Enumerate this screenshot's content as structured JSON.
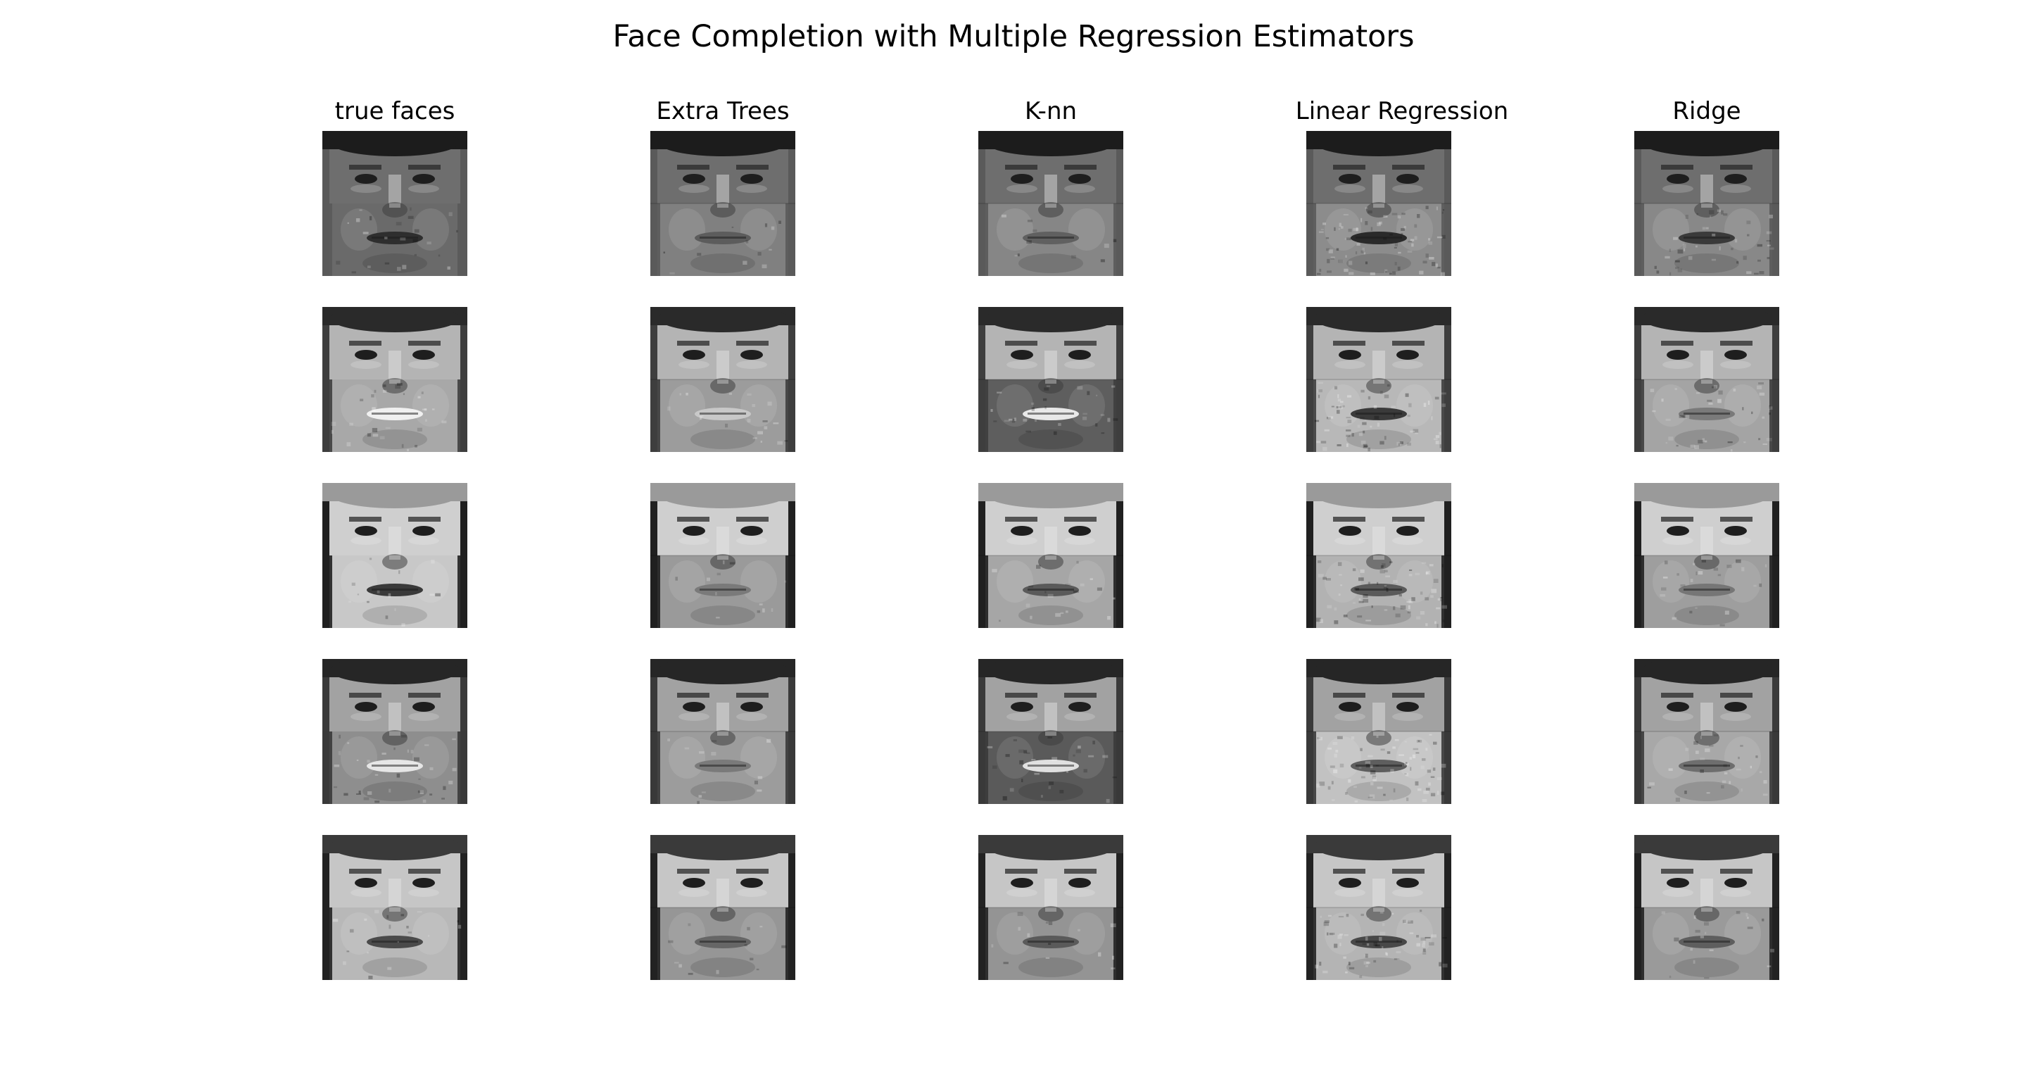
{
  "figure": {
    "title": "Face Completion with Multiple Regression Estimators"
  },
  "columns": [
    {
      "key": "true",
      "label": "true faces"
    },
    {
      "key": "et",
      "label": "Extra Trees"
    },
    {
      "key": "knn",
      "label": "K-nn"
    },
    {
      "key": "lr",
      "label": "Linear Regression"
    },
    {
      "key": "ridge",
      "label": "Ridge"
    }
  ],
  "faces": [
    {
      "skin": "#6e6e6e",
      "hair": "#1c1c1c",
      "bg": "#5a5a5a",
      "completions": {
        "true": {
          "lower": "#6a6a6a",
          "mouth": "#2e2e2e",
          "noise": 0.1
        },
        "et": {
          "lower": "#808080",
          "mouth": "#5c5c5c",
          "noise": 0.05
        },
        "knn": {
          "lower": "#868686",
          "mouth": "#606060",
          "noise": 0.04
        },
        "lr": {
          "lower": "#8c8c8c",
          "mouth": "#2a2a2a",
          "noise": 0.35
        },
        "ridge": {
          "lower": "#888888",
          "mouth": "#3a3a3a",
          "noise": 0.18
        }
      }
    },
    {
      "skin": "#b4b4b4",
      "hair": "#2a2a2a",
      "bg": "#3e3e3e",
      "completions": {
        "true": {
          "lower": "#a8a8a8",
          "mouth": "#f0f0f0",
          "noise": 0.12
        },
        "et": {
          "lower": "#9c9c9c",
          "mouth": "#c8c8c8",
          "noise": 0.08
        },
        "knn": {
          "lower": "#5e5e5e",
          "mouth": "#e8e8e8",
          "noise": 0.12
        },
        "lr": {
          "lower": "#b8b8b8",
          "mouth": "#3a3a3a",
          "noise": 0.3
        },
        "ridge": {
          "lower": "#a4a4a4",
          "mouth": "#7a7a7a",
          "noise": 0.16
        }
      }
    },
    {
      "skin": "#cfcfcf",
      "hair": "#9a9a9a",
      "bg": "#202020",
      "completions": {
        "true": {
          "lower": "#c8c8c8",
          "mouth": "#3a3a3a",
          "noise": 0.06
        },
        "et": {
          "lower": "#9a9a9a",
          "mouth": "#7a7a7a",
          "noise": 0.05
        },
        "knn": {
          "lower": "#a6a6a6",
          "mouth": "#5a5a5a",
          "noise": 0.08
        },
        "lr": {
          "lower": "#b2b2b2",
          "mouth": "#5a5a5a",
          "noise": 0.3
        },
        "ridge": {
          "lower": "#9e9e9e",
          "mouth": "#767676",
          "noise": 0.1
        }
      }
    },
    {
      "skin": "#a2a2a2",
      "hair": "#262626",
      "bg": "#3a3a3a",
      "completions": {
        "true": {
          "lower": "#8e8e8e",
          "mouth": "#e6e6e6",
          "noise": 0.14
        },
        "et": {
          "lower": "#9c9c9c",
          "mouth": "#7a7a7a",
          "noise": 0.05
        },
        "knn": {
          "lower": "#5a5a5a",
          "mouth": "#e0e0e0",
          "noise": 0.12
        },
        "lr": {
          "lower": "#c2c2c2",
          "mouth": "#5e5e5e",
          "noise": 0.32
        },
        "ridge": {
          "lower": "#a8a8a8",
          "mouth": "#6e6e6e",
          "noise": 0.12
        }
      }
    },
    {
      "skin": "#c6c6c6",
      "hair": "#3a3a3a",
      "bg": "#222222",
      "completions": {
        "true": {
          "lower": "#b8b8b8",
          "mouth": "#4a4a4a",
          "noise": 0.08
        },
        "et": {
          "lower": "#969696",
          "mouth": "#666666",
          "noise": 0.05
        },
        "knn": {
          "lower": "#949494",
          "mouth": "#5a5a5a",
          "noise": 0.06
        },
        "lr": {
          "lower": "#b4b4b4",
          "mouth": "#484848",
          "noise": 0.28
        },
        "ridge": {
          "lower": "#9a9a9a",
          "mouth": "#5e5e5e",
          "noise": 0.08
        }
      }
    }
  ]
}
